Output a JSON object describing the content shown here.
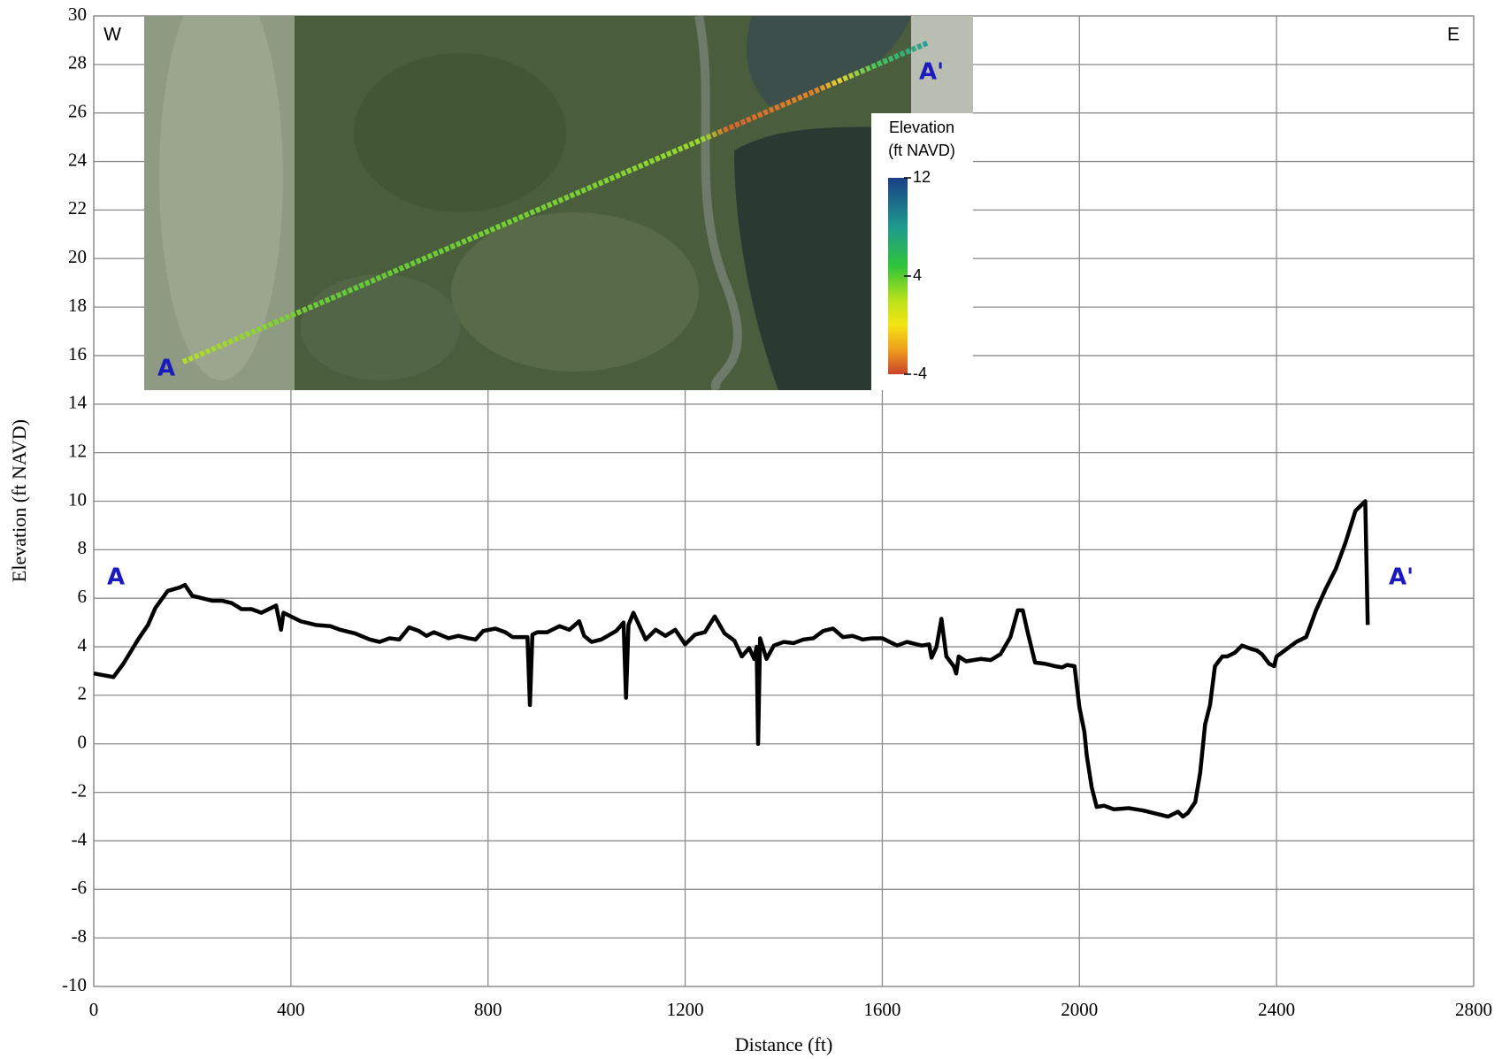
{
  "chart_data": {
    "type": "line",
    "x_label": "Distance (ft)",
    "y_label": "Elevation (ft NAVD)",
    "xlim": [
      0,
      2800
    ],
    "xticks": [
      0,
      400,
      800,
      1200,
      1600,
      2000,
      2400,
      2800
    ],
    "ylim": [
      -10,
      30
    ],
    "yticks": [
      -10,
      -8,
      -6,
      -4,
      -2,
      0,
      2,
      4,
      6,
      8,
      10,
      12,
      14,
      16,
      18,
      20,
      22,
      24,
      26,
      28,
      30
    ],
    "grid": true,
    "color": "#000000",
    "x": [
      0,
      40,
      60,
      90,
      110,
      125,
      150,
      175,
      185,
      200,
      240,
      260,
      280,
      300,
      320,
      340,
      370,
      380,
      385,
      420,
      450,
      480,
      500,
      530,
      560,
      580,
      600,
      620,
      640,
      660,
      675,
      690,
      720,
      740,
      760,
      775,
      790,
      815,
      835,
      850,
      870,
      880,
      885,
      890,
      900,
      920,
      945,
      965,
      985,
      995,
      1010,
      1030,
      1060,
      1075,
      1080,
      1085,
      1095,
      1120,
      1140,
      1160,
      1180,
      1200,
      1220,
      1240,
      1260,
      1280,
      1300,
      1315,
      1330,
      1340,
      1345,
      1348,
      1352,
      1365,
      1380,
      1400,
      1420,
      1440,
      1460,
      1480,
      1500,
      1520,
      1540,
      1560,
      1580,
      1600,
      1630,
      1650,
      1680,
      1695,
      1700,
      1710,
      1720,
      1730,
      1745,
      1750,
      1755,
      1770,
      1800,
      1820,
      1840,
      1860,
      1875,
      1885,
      1895,
      1910,
      1930,
      1950,
      1965,
      1975,
      1990,
      2000,
      2010,
      2015,
      2025,
      2035,
      2050,
      2070,
      2100,
      2130,
      2160,
      2180,
      2200,
      2210,
      2220,
      2235,
      2245,
      2255,
      2265,
      2275,
      2290,
      2300,
      2315,
      2330,
      2350,
      2360,
      2370,
      2385,
      2395,
      2400,
      2420,
      2440,
      2460,
      2480,
      2500,
      2520,
      2540,
      2560,
      2580,
      2585
    ],
    "values": [
      2.9,
      2.75,
      3.3,
      4.3,
      4.9,
      5.6,
      6.3,
      6.45,
      6.55,
      6.1,
      5.9,
      5.9,
      5.8,
      5.55,
      5.55,
      5.4,
      5.7,
      4.7,
      5.4,
      5.05,
      4.9,
      4.85,
      4.7,
      4.55,
      4.3,
      4.2,
      4.35,
      4.3,
      4.8,
      4.65,
      4.45,
      4.6,
      4.35,
      4.45,
      4.35,
      4.3,
      4.65,
      4.75,
      4.6,
      4.4,
      4.4,
      4.4,
      1.6,
      4.5,
      4.6,
      4.6,
      4.85,
      4.7,
      5.05,
      4.45,
      4.2,
      4.3,
      4.65,
      5.0,
      1.9,
      4.9,
      5.4,
      4.3,
      4.7,
      4.45,
      4.7,
      4.1,
      4.5,
      4.6,
      5.25,
      4.55,
      4.25,
      3.6,
      3.95,
      3.5,
      4.0,
      0,
      4.35,
      3.5,
      4.05,
      4.2,
      4.15,
      4.3,
      4.35,
      4.65,
      4.75,
      4.4,
      4.45,
      4.3,
      4.35,
      4.35,
      4.05,
      4.2,
      4.05,
      4.1,
      3.55,
      4.0,
      5.15,
      3.6,
      3.2,
      2.9,
      3.6,
      3.4,
      3.5,
      3.45,
      3.7,
      4.4,
      5.5,
      5.5,
      4.6,
      3.35,
      3.3,
      3.2,
      3.15,
      3.25,
      3.2,
      1.5,
      0.5,
      -0.5,
      -1.8,
      -2.6,
      -2.55,
      -2.7,
      -2.65,
      -2.75,
      -2.9,
      -3.0,
      -2.8,
      -3.0,
      -2.85,
      -2.4,
      -1.2,
      0.8,
      1.6,
      3.2,
      3.6,
      3.6,
      3.75,
      4.05,
      3.9,
      3.85,
      3.7,
      3.3,
      3.2,
      3.6,
      3.9,
      4.2,
      4.4,
      5.5,
      6.4,
      7.2,
      8.3,
      9.6,
      10.0,
      4.9
    ],
    "annotations": {
      "west": "W",
      "east": "E",
      "start": "A",
      "end": "A'"
    },
    "inset": {
      "start": "A",
      "end": "A'",
      "colorbar": {
        "title": [
          "Elevation",
          "(ft NAVD)"
        ],
        "lim": [
          -4,
          12
        ],
        "ticks": [
          12,
          4,
          -4
        ]
      }
    }
  }
}
